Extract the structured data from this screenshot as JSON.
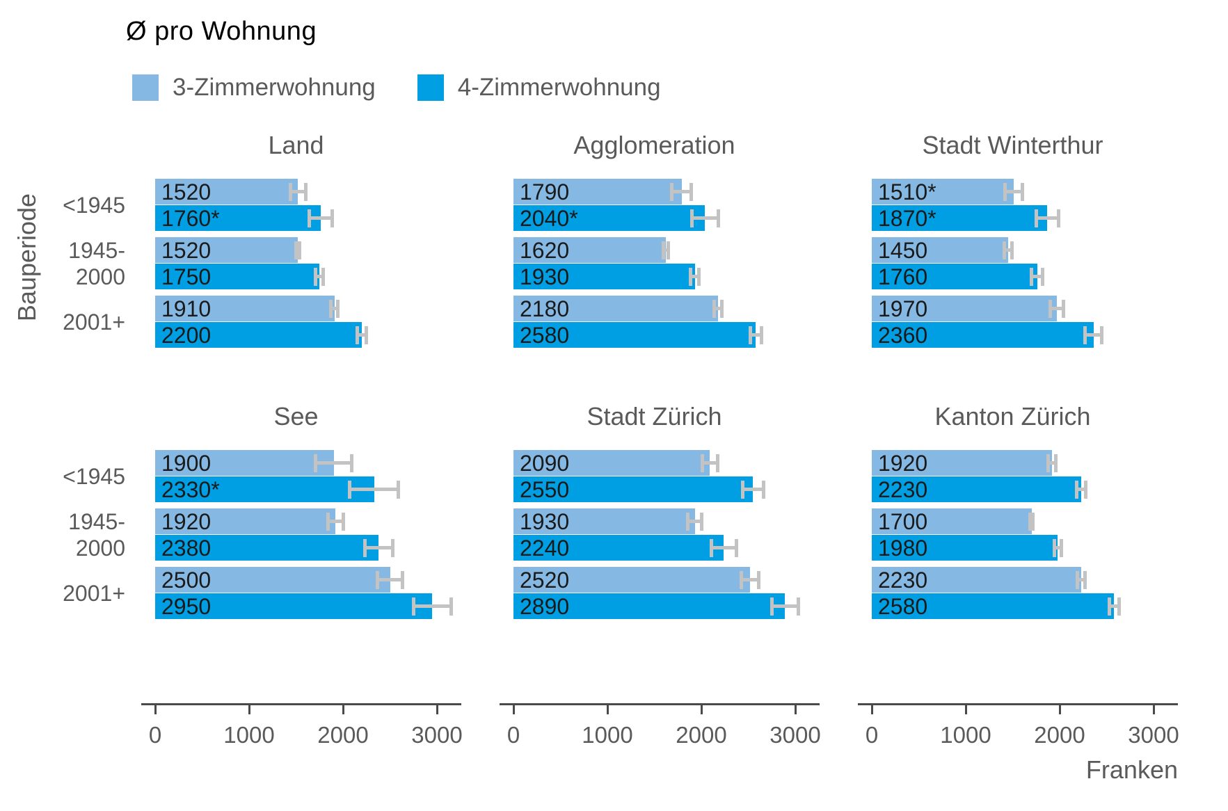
{
  "title": "Ø pro Wohnung",
  "legend": {
    "items": [
      {
        "label": "3-Zimmerwohnung",
        "color": "#85B9E3"
      },
      {
        "label": "4-Zimmerwohnung",
        "color": "#009FE3"
      }
    ]
  },
  "y_axis": {
    "label": "Bauperiode",
    "categories": [
      {
        "lines": [
          "<1945"
        ]
      },
      {
        "lines": [
          "1945-",
          "2000"
        ]
      },
      {
        "lines": [
          "2001+"
        ]
      }
    ]
  },
  "x_axis": {
    "label": "Franken",
    "ticks": [
      "0",
      "1000",
      "2000",
      "3000"
    ],
    "tick_values": [
      0,
      1000,
      2000,
      3000
    ]
  },
  "chart_data": {
    "type": "bar",
    "orientation": "horizontal",
    "title": "Ø pro Wohnung",
    "xlabel": "Franken",
    "ylabel": "Bauperiode",
    "xlim": [
      0,
      3300
    ],
    "grid": false,
    "legend_position": "top-left",
    "error_bars": true,
    "series_names": [
      "3-Zimmerwohnung",
      "4-Zimmerwohnung"
    ],
    "categories": [
      "<1945",
      "1945-2000",
      "2001+"
    ],
    "colors": {
      "3-Zimmerwohnung": "#85B9E3",
      "4-Zimmerwohnung": "#009FE3",
      "error_bar": "#C3C3C3",
      "axis": "#4A4A4A",
      "value_text": "#1A1A1A",
      "muted_text": "#5A5A5A"
    },
    "facets": [
      {
        "title": "Land",
        "groups": [
          {
            "period": "<1945",
            "bars": [
              {
                "series": "3-Zimmerwohnung",
                "value": 1520,
                "label": "1520",
                "error": 100
              },
              {
                "series": "4-Zimmerwohnung",
                "value": 1760,
                "label": "1760*",
                "error": 140
              }
            ]
          },
          {
            "period": "1945-2000",
            "bars": [
              {
                "series": "3-Zimmerwohnung",
                "value": 1520,
                "label": "1520",
                "error": 35
              },
              {
                "series": "4-Zimmerwohnung",
                "value": 1750,
                "label": "1750",
                "error": 60
              }
            ]
          },
          {
            "period": "2001+",
            "bars": [
              {
                "series": "3-Zimmerwohnung",
                "value": 1910,
                "label": "1910",
                "error": 55
              },
              {
                "series": "4-Zimmerwohnung",
                "value": 2200,
                "label": "2200",
                "error": 70
              }
            ]
          }
        ]
      },
      {
        "title": "Agglomeration",
        "groups": [
          {
            "period": "<1945",
            "bars": [
              {
                "series": "3-Zimmerwohnung",
                "value": 1790,
                "label": "1790",
                "error": 120
              },
              {
                "series": "4-Zimmerwohnung",
                "value": 2040,
                "label": "2040*",
                "error": 160
              }
            ]
          },
          {
            "period": "1945-2000",
            "bars": [
              {
                "series": "3-Zimmerwohnung",
                "value": 1620,
                "label": "1620",
                "error": 45
              },
              {
                "series": "4-Zimmerwohnung",
                "value": 1930,
                "label": "1930",
                "error": 60
              }
            ]
          },
          {
            "period": "2001+",
            "bars": [
              {
                "series": "3-Zimmerwohnung",
                "value": 2180,
                "label": "2180",
                "error": 60
              },
              {
                "series": "4-Zimmerwohnung",
                "value": 2580,
                "label": "2580",
                "error": 80
              }
            ]
          }
        ]
      },
      {
        "title": "Stadt Winterthur",
        "groups": [
          {
            "period": "<1945",
            "bars": [
              {
                "series": "3-Zimmerwohnung",
                "value": 1510,
                "label": "1510*",
                "error": 110
              },
              {
                "series": "4-Zimmerwohnung",
                "value": 1870,
                "label": "1870*",
                "error": 140
              }
            ]
          },
          {
            "period": "1945-2000",
            "bars": [
              {
                "series": "3-Zimmerwohnung",
                "value": 1450,
                "label": "1450",
                "error": 60
              },
              {
                "series": "4-Zimmerwohnung",
                "value": 1760,
                "label": "1760",
                "error": 80
              }
            ]
          },
          {
            "period": "2001+",
            "bars": [
              {
                "series": "3-Zimmerwohnung",
                "value": 1970,
                "label": "1970",
                "error": 90
              },
              {
                "series": "4-Zimmerwohnung",
                "value": 2360,
                "label": "2360",
                "error": 110
              }
            ]
          }
        ]
      },
      {
        "title": "See",
        "groups": [
          {
            "period": "<1945",
            "bars": [
              {
                "series": "3-Zimmerwohnung",
                "value": 1900,
                "label": "1900",
                "error": 210
              },
              {
                "series": "4-Zimmerwohnung",
                "value": 2330,
                "label": "2330*",
                "error": 280
              }
            ]
          },
          {
            "period": "1945-2000",
            "bars": [
              {
                "series": "3-Zimmerwohnung",
                "value": 1920,
                "label": "1920",
                "error": 100
              },
              {
                "series": "4-Zimmerwohnung",
                "value": 2380,
                "label": "2380",
                "error": 165
              }
            ]
          },
          {
            "period": "2001+",
            "bars": [
              {
                "series": "3-Zimmerwohnung",
                "value": 2500,
                "label": "2500",
                "error": 150
              },
              {
                "series": "4-Zimmerwohnung",
                "value": 2950,
                "label": "2950",
                "error": 220
              }
            ]
          }
        ]
      },
      {
        "title": "Stadt Zürich",
        "groups": [
          {
            "period": "<1945",
            "bars": [
              {
                "series": "3-Zimmerwohnung",
                "value": 2090,
                "label": "2090",
                "error": 100
              },
              {
                "series": "4-Zimmerwohnung",
                "value": 2550,
                "label": "2550",
                "error": 130
              }
            ]
          },
          {
            "period": "1945-2000",
            "bars": [
              {
                "series": "3-Zimmerwohnung",
                "value": 1930,
                "label": "1930",
                "error": 90
              },
              {
                "series": "4-Zimmerwohnung",
                "value": 2240,
                "label": "2240",
                "error": 150
              }
            ]
          },
          {
            "period": "2001+",
            "bars": [
              {
                "series": "3-Zimmerwohnung",
                "value": 2520,
                "label": "2520",
                "error": 110
              },
              {
                "series": "4-Zimmerwohnung",
                "value": 2890,
                "label": "2890",
                "error": 160
              }
            ]
          }
        ]
      },
      {
        "title": "Kanton Zürich",
        "groups": [
          {
            "period": "<1945",
            "bars": [
              {
                "series": "3-Zimmerwohnung",
                "value": 1920,
                "label": "1920",
                "error": 60
              },
              {
                "series": "4-Zimmerwohnung",
                "value": 2230,
                "label": "2230",
                "error": 65
              }
            ]
          },
          {
            "period": "1945-2000",
            "bars": [
              {
                "series": "3-Zimmerwohnung",
                "value": 1700,
                "label": "1700",
                "error": 30
              },
              {
                "series": "4-Zimmerwohnung",
                "value": 1980,
                "label": "1980",
                "error": 55
              }
            ]
          },
          {
            "period": "2001+",
            "bars": [
              {
                "series": "3-Zimmerwohnung",
                "value": 2230,
                "label": "2230",
                "error": 60
              },
              {
                "series": "4-Zimmerwohnung",
                "value": 2580,
                "label": "2580",
                "error": 70
              }
            ]
          }
        ]
      }
    ]
  }
}
